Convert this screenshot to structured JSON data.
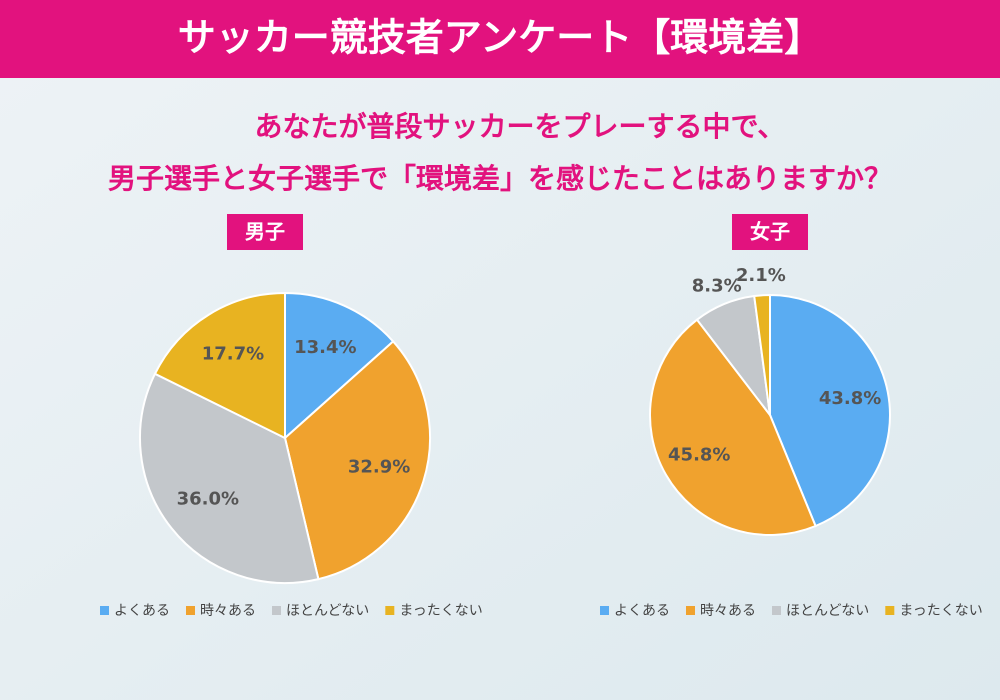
{
  "header": {
    "title": "サッカー競技者アンケート【環境差】"
  },
  "question": [
    "あなたが普段サッカーをプレーする中で、",
    "男子選手と女子選手で「環境差」を感じたことはありますか？"
  ],
  "chart_data": [
    {
      "type": "pie",
      "title": "男子",
      "categories": [
        "よくある",
        "時々ある",
        "ほとんどない",
        "まったくない"
      ],
      "colors": [
        "#5aacf2",
        "#f0a22e",
        "#c3c7cb",
        "#e8b321"
      ],
      "values": [
        13.4,
        32.9,
        36.0,
        17.7
      ],
      "value_labels": [
        "13.4%",
        "32.9%",
        "36.0%",
        "17.7%"
      ]
    },
    {
      "type": "pie",
      "title": "女子",
      "categories": [
        "よくある",
        "時々ある",
        "ほとんどない",
        "まったくない"
      ],
      "colors": [
        "#5aacf2",
        "#f0a22e",
        "#c3c7cb",
        "#e8b321"
      ],
      "values": [
        43.8,
        45.8,
        8.3,
        2.1
      ],
      "value_labels": [
        "43.8%",
        "45.8%",
        "8.3%",
        "2.1%"
      ]
    }
  ]
}
